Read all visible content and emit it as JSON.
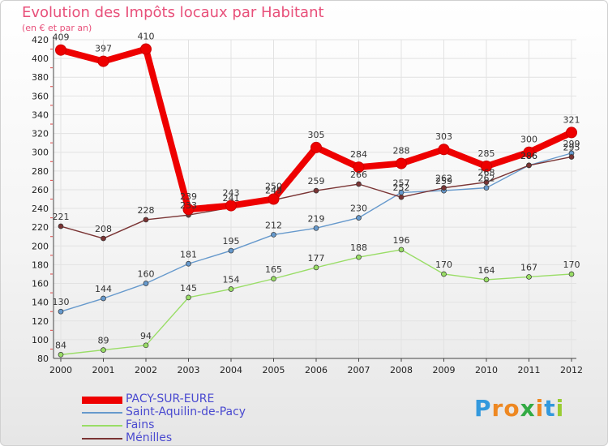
{
  "chart_data": {
    "type": "line",
    "title": "Evolution des Impôts locaux par Habitant",
    "subtitle": "(en € et par an)",
    "xlabel": "",
    "ylabel": "",
    "x": [
      "2000",
      "2001",
      "2002",
      "2003",
      "2004",
      "2005",
      "2006",
      "2007",
      "2008",
      "2009",
      "2010",
      "2011",
      "2012"
    ],
    "ylim": [
      80,
      420
    ],
    "yticks": [
      80,
      100,
      120,
      140,
      160,
      180,
      200,
      220,
      240,
      260,
      280,
      300,
      320,
      340,
      360,
      380,
      400,
      420
    ],
    "grid": true,
    "legend_position": "bottom-left",
    "series": [
      {
        "name": "PACY-SUR-EURE",
        "color": "#ee0000",
        "values": [
          409,
          397,
          410,
          239,
          243,
          250,
          305,
          284,
          288,
          303,
          285,
          300,
          321
        ]
      },
      {
        "name": "Saint-Aquilin-de-Pacy",
        "color": "#6699cc",
        "values": [
          130,
          144,
          160,
          181,
          195,
          212,
          219,
          230,
          257,
          259,
          262,
          286,
          299
        ]
      },
      {
        "name": "Fains",
        "color": "#99dd66",
        "values": [
          84,
          89,
          94,
          145,
          154,
          165,
          177,
          188,
          196,
          170,
          164,
          167,
          170
        ]
      },
      {
        "name": "Ménilles",
        "color": "#7a3434",
        "values": [
          221,
          208,
          228,
          233,
          241,
          249,
          259,
          266,
          252,
          262,
          268,
          286,
          295
        ]
      }
    ]
  },
  "brand": {
    "letters": [
      "P",
      "r",
      "o",
      "x",
      "i",
      "t",
      "i"
    ],
    "colors": [
      "#3399dd",
      "#ee8822",
      "#ee8822",
      "#33aa44",
      "#ee8822",
      "#3399dd",
      "#99cc33"
    ]
  }
}
